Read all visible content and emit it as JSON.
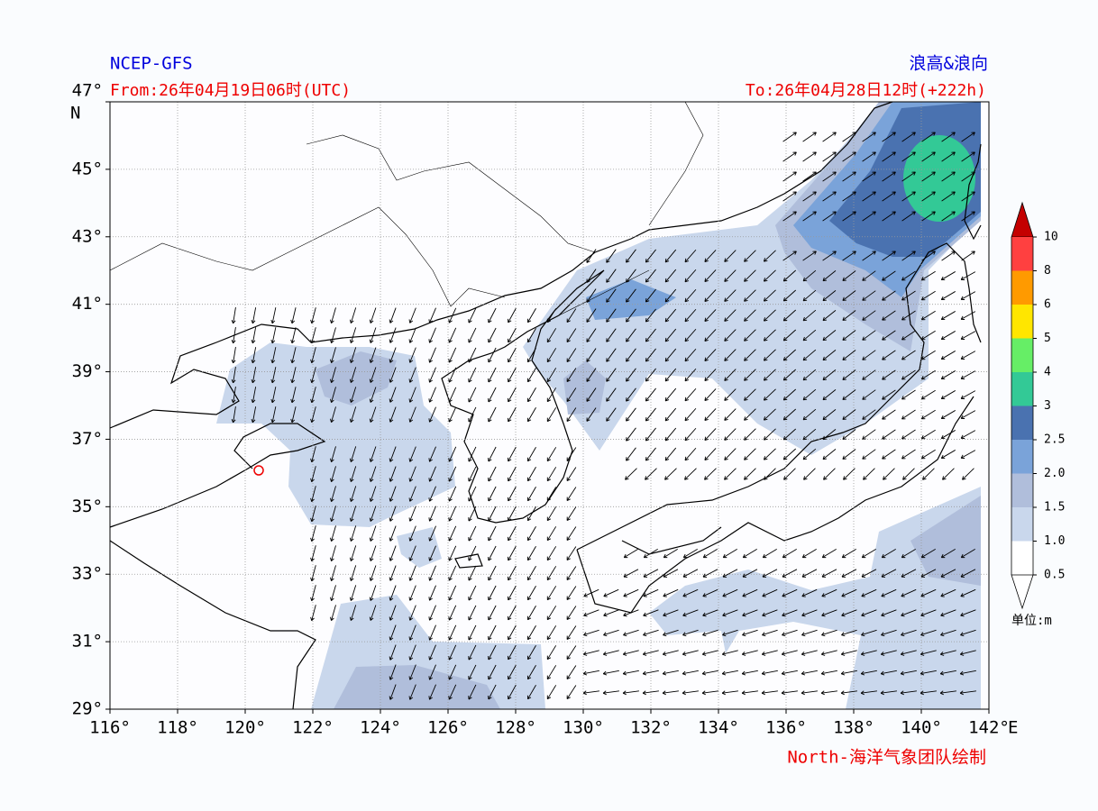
{
  "header": {
    "source": "NCEP-GFS",
    "product": "浪高&浪向",
    "from": "From:26年04月19日06时(UTC)",
    "to": "To:26年04月28日12时(+222h)"
  },
  "axes": {
    "lon_labels": [
      "116°",
      "118°",
      "120°",
      "122°",
      "124°",
      "126°",
      "128°",
      "130°",
      "132°",
      "134°",
      "136°",
      "138°",
      "140°",
      "142°"
    ],
    "lon_unit": "E",
    "lat_labels": [
      "47°",
      "45°",
      "43°",
      "41°",
      "39°",
      "37°",
      "35°",
      "33°",
      "31°",
      "29°"
    ],
    "lat_unit": "N"
  },
  "legend": {
    "levels": [
      "10",
      "8",
      "6",
      "5",
      "4",
      "3",
      "2.5",
      "2.0",
      "1.5",
      "1.0",
      "0.5"
    ],
    "colors": [
      "#c40000",
      "#ff4040",
      "#ff9a00",
      "#ffe600",
      "#66ee66",
      "#33c996",
      "#4a72b0",
      "#7aa3d9",
      "#b0bedb",
      "#c9d7ec",
      "#ffffff",
      "#ffffff"
    ],
    "unit": "单位:m"
  },
  "credit": "North-海洋气象团队绘制"
}
